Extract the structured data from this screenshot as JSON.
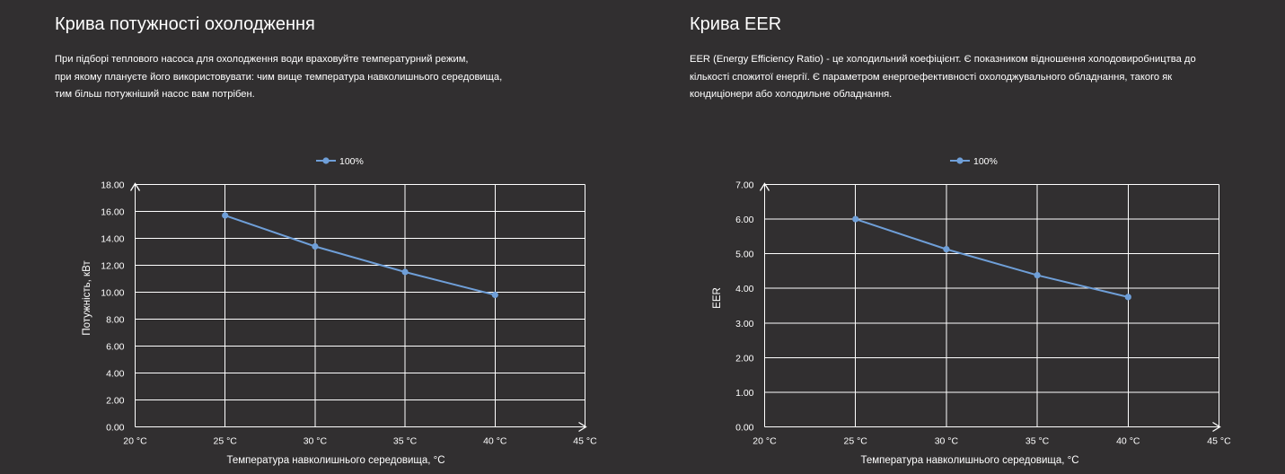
{
  "left": {
    "title": "Крива потужності охолодження",
    "description_lines": [
      "При підборі теплового насоса для охолодження води враховуйте температурний режим,",
      "при якому плануєте його використовувати: чим вище температура навколишнього середовища,",
      "тим більш потужніший насос вам потрібен."
    ]
  },
  "right": {
    "title": "Крива EER",
    "description_lines": [
      "EER (Energy Efficiency Ratio) - це холодильний коефіцієнт. Є показником відношення холодовиробництва до",
      "кількості спожитої енергії. Є параметром енергоефективності охолоджувального обладнання, такого як",
      "кондиціонери або холодильне обладнання."
    ]
  },
  "colors": {
    "background": "#312f30",
    "grid": "#ffffff",
    "series": "#6f9fd8",
    "text": "#ffffff"
  },
  "chart_data": [
    {
      "type": "line",
      "categories": [
        "20 °C",
        "25 °C",
        "30 °C",
        "35 °C",
        "40 °C",
        "45 °C"
      ],
      "series": [
        {
          "name": "100%",
          "values": [
            null,
            15.7,
            13.4,
            11.5,
            9.8,
            null
          ]
        }
      ],
      "xlabel": "Температура навколишнього середовища, °C",
      "ylabel": "Потужність, кВт",
      "ylim": [
        0,
        18
      ],
      "ytick_step": 2,
      "ytick_labels": [
        "0.00",
        "2.00",
        "4.00",
        "6.00",
        "8.00",
        "10.00",
        "12.00",
        "14.00",
        "16.00",
        "18.00"
      ],
      "grid": true,
      "legend": "top-center"
    },
    {
      "type": "line",
      "categories": [
        "20 °C",
        "25 °C",
        "30 °C",
        "35 °C",
        "40 °C",
        "45 °C"
      ],
      "series": [
        {
          "name": "100%",
          "values": [
            null,
            6.0,
            5.13,
            4.38,
            3.75,
            null
          ]
        }
      ],
      "xlabel": "Температура навколишнього середовища, °C",
      "ylabel": "EER",
      "ylim": [
        0,
        7
      ],
      "ytick_step": 1,
      "ytick_labels": [
        "0.00",
        "1.00",
        "2.00",
        "3.00",
        "4.00",
        "5.00",
        "6.00",
        "7.00"
      ],
      "grid": true,
      "legend": "top-center"
    }
  ]
}
